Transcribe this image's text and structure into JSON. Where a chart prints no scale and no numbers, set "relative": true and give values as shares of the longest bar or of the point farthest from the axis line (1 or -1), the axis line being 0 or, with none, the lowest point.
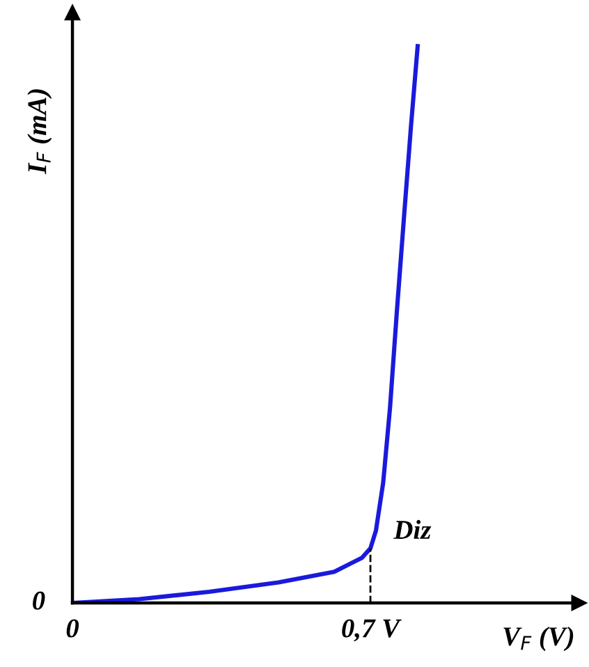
{
  "chart_data": {
    "type": "line",
    "relative": true,
    "xlabel": "V$_{F}$ (V)",
    "ylabel": "I$_{F}$ (mA)",
    "x": [
      0,
      0.157,
      0.321,
      0.484,
      0.615,
      0.68,
      0.7,
      0.713,
      0.73,
      0.746,
      0.762,
      0.779,
      0.795,
      0.811
    ],
    "series": [
      {
        "color": "#1a1adc",
        "values": [
          0,
          0.007,
          0.02,
          0.037,
          0.056,
          0.081,
          0.098,
          0.13,
          0.216,
          0.35,
          0.522,
          0.694,
          0.853,
          1.0
        ]
      }
    ],
    "xlim": [
      0,
      1.19
    ],
    "xticks": [
      0,
      {
        "value": 0.7,
        "label": "0,7 V"
      }
    ],
    "ref_lines": [
      {
        "axis": "x",
        "value": 0.7,
        "color": "#000000",
        "line_style": "dashed"
      }
    ],
    "annotations": [
      {
        "text": "Diz",
        "x": 0.7,
        "y": 0.098
      },
      {
        "text": "0",
        "x": 0,
        "y": 0
      }
    ],
    "grid": false,
    "marker": "none",
    "line_style": "solid"
  }
}
